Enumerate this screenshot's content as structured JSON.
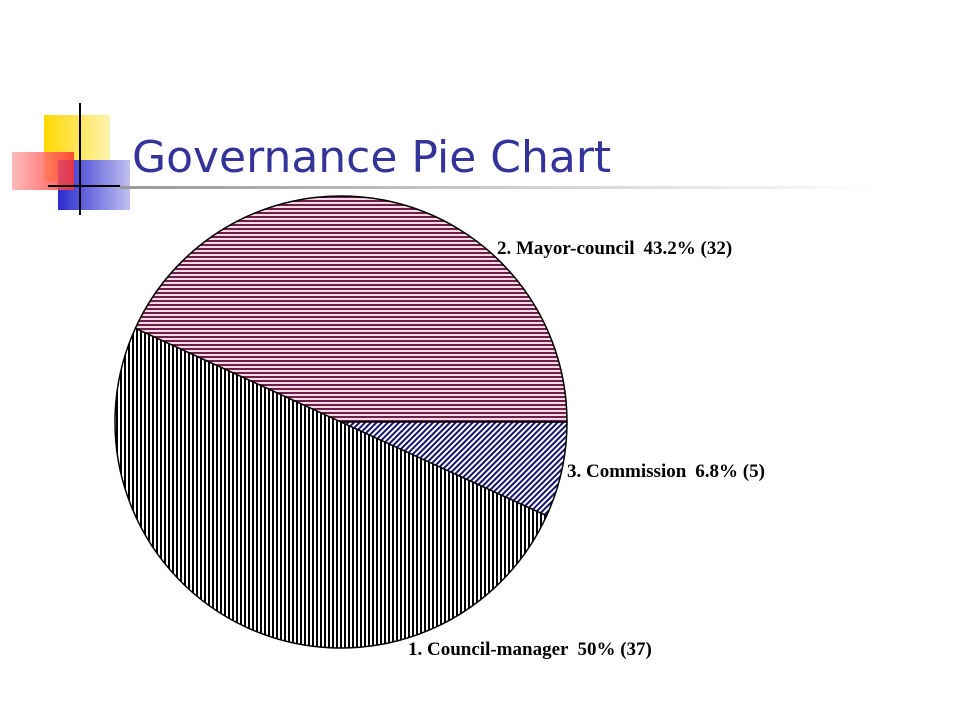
{
  "chart_data": {
    "type": "pie",
    "title": "Governance Pie Chart",
    "categories": [
      "1. Council-manager",
      "2. Mayor-council",
      "3. Commission"
    ],
    "values": [
      50,
      43.2,
      6.8
    ],
    "value_labels": [
      "50% (37)",
      "43.2%  (32)",
      "6.8%  (5)"
    ],
    "colors": [
      "#000000",
      "#6e1f48",
      "#141470"
    ],
    "patterns": [
      "vertical",
      "horizontal",
      "diagonal"
    ]
  }
}
